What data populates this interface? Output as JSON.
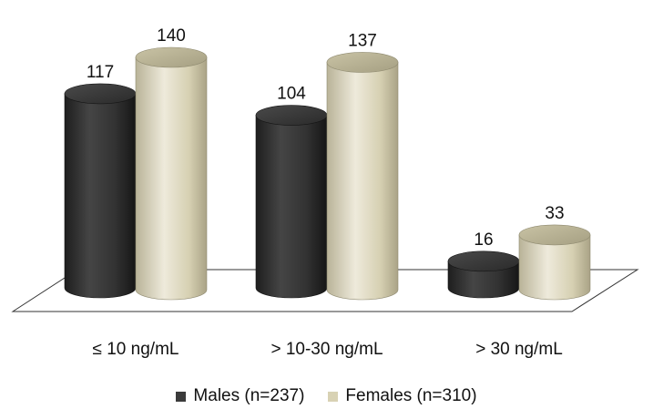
{
  "chart_data": {
    "type": "bar",
    "style": "3d-cylinder",
    "categories": [
      "≤ 10 ng/mL",
      "> 10-30 ng/mL",
      "> 30 ng/mL"
    ],
    "series": [
      {
        "name": "Males (n=237)",
        "values": [
          117,
          104,
          16
        ],
        "color": "#3b3b3b"
      },
      {
        "name": "Females (n=310)",
        "values": [
          140,
          137,
          33
        ],
        "color": "#d8d2b4"
      }
    ],
    "legend": {
      "placement": "bottom"
    },
    "grid": false,
    "title": "",
    "xlabel": "",
    "ylabel": ""
  }
}
